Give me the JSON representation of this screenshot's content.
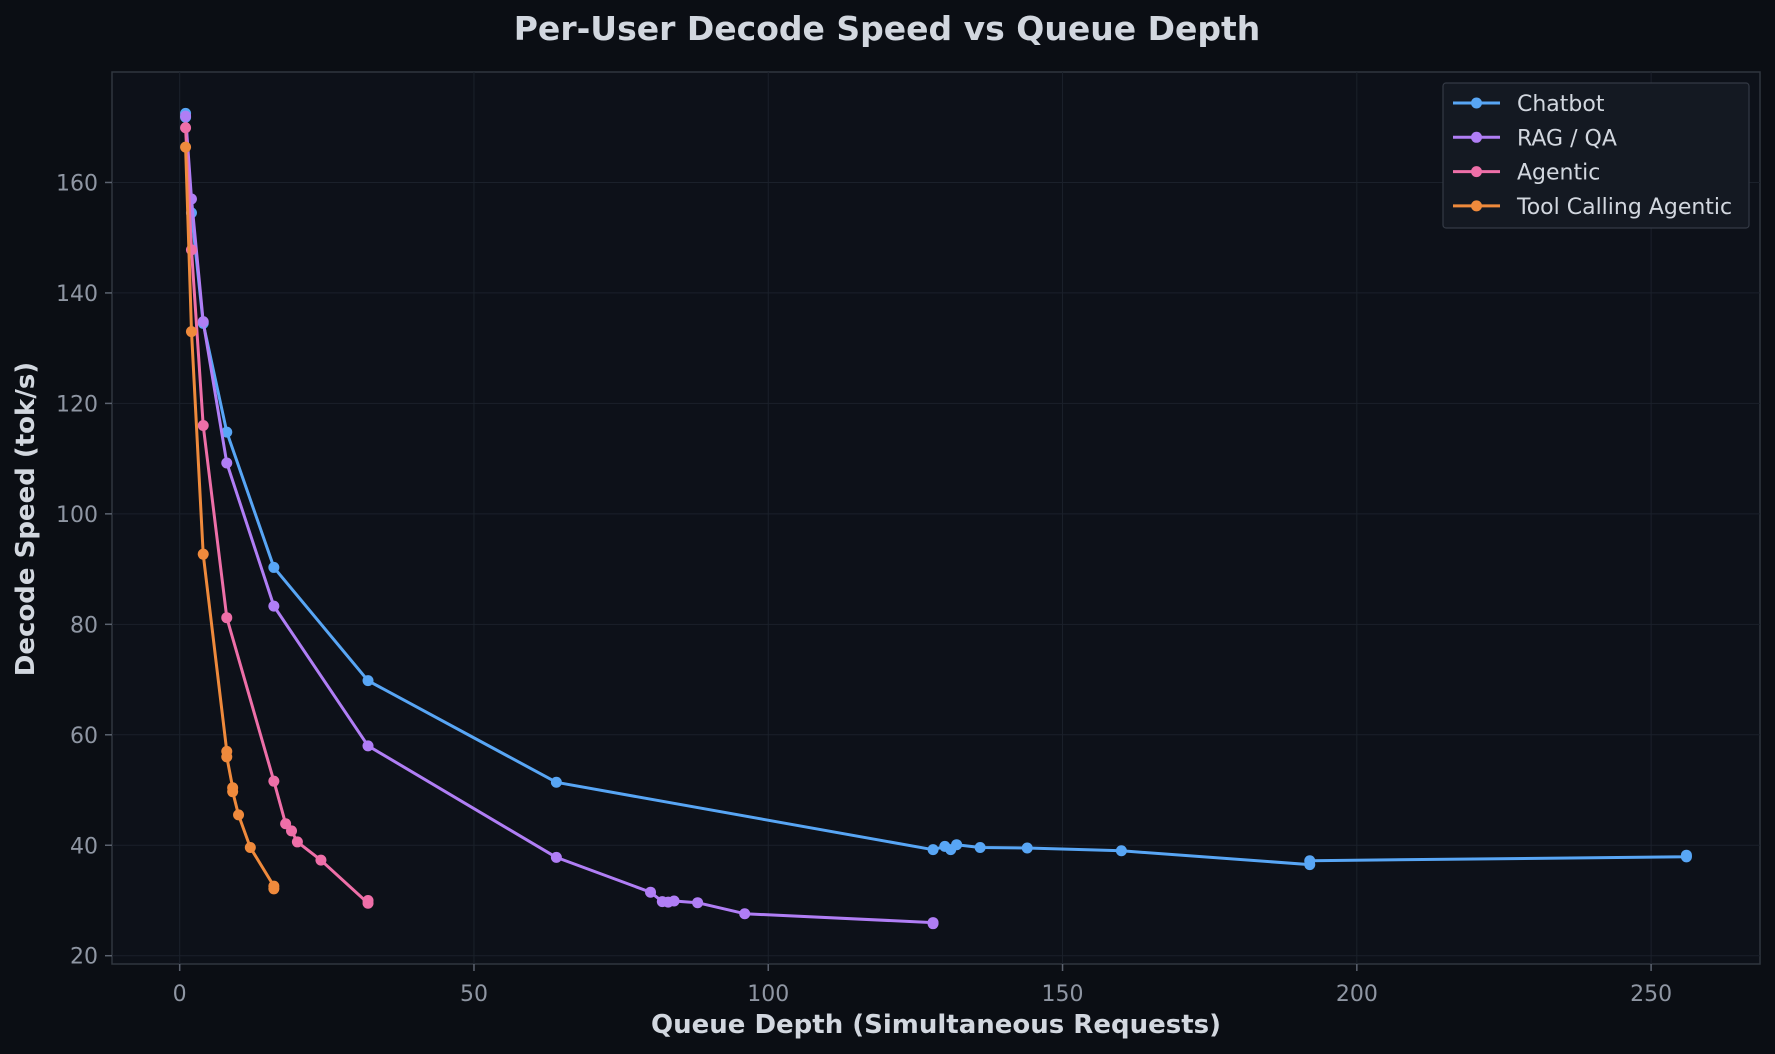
{
  "chart_data": {
    "type": "line",
    "title": "Per-User Decode Speed vs Queue Depth",
    "xlabel": "Queue Depth (Simultaneous Requests)",
    "ylabel": "Decode Speed (tok/s)",
    "xlim": [
      -11.5,
      268.5
    ],
    "ylim": [
      18.5,
      180
    ],
    "xticks": [
      0,
      50,
      100,
      150,
      200,
      250
    ],
    "yticks": [
      20,
      40,
      60,
      80,
      100,
      120,
      140,
      160
    ],
    "grid": true,
    "legend": "top-right",
    "series": [
      {
        "name": "Chatbot",
        "color": "#58a6f5",
        "points": [
          [
            1,
            172.5
          ],
          [
            1,
            171.8
          ],
          [
            2,
            154.5
          ],
          [
            4,
            134.5
          ],
          [
            8,
            114.8
          ],
          [
            16,
            90.3
          ],
          [
            32,
            69.8
          ],
          [
            64,
            51.4
          ],
          [
            128,
            39.2
          ],
          [
            130,
            39.8
          ],
          [
            131,
            39.2
          ],
          [
            132,
            40.1
          ],
          [
            136,
            39.6
          ],
          [
            144,
            39.5
          ],
          [
            160,
            39.0
          ],
          [
            192,
            36.5
          ],
          [
            192,
            37.2
          ],
          [
            256,
            37.9
          ],
          [
            256,
            38.2
          ]
        ]
      },
      {
        "name": "RAG / QA",
        "color": "#b07ef5",
        "points": [
          [
            1,
            172.0
          ],
          [
            2,
            157.0
          ],
          [
            4,
            134.8
          ],
          [
            8,
            109.2
          ],
          [
            16,
            83.3
          ],
          [
            32,
            58.0
          ],
          [
            64,
            37.8
          ],
          [
            80,
            31.5
          ],
          [
            82,
            29.8
          ],
          [
            83,
            29.7
          ],
          [
            84,
            29.9
          ],
          [
            88,
            29.6
          ],
          [
            96,
            27.6
          ],
          [
            128,
            26.0
          ],
          [
            128,
            25.8
          ]
        ]
      },
      {
        "name": "Agentic",
        "color": "#ee6fa8",
        "points": [
          [
            1,
            169.9
          ],
          [
            2,
            147.8
          ],
          [
            4,
            116.0
          ],
          [
            8,
            81.2
          ],
          [
            16,
            51.6
          ],
          [
            18,
            43.9
          ],
          [
            19,
            42.6
          ],
          [
            20,
            40.6
          ],
          [
            24,
            37.3
          ],
          [
            32,
            29.5
          ],
          [
            32,
            30.0
          ]
        ]
      },
      {
        "name": "Tool Calling Agentic",
        "color": "#ef8a3c",
        "points": [
          [
            1,
            166.4
          ],
          [
            2,
            133.0
          ],
          [
            4,
            92.7
          ],
          [
            8,
            57.0
          ],
          [
            8,
            56.0
          ],
          [
            9,
            50.4
          ],
          [
            9,
            49.7
          ],
          [
            10,
            45.5
          ],
          [
            12,
            39.6
          ],
          [
            16,
            32.6
          ],
          [
            16,
            32.1
          ]
        ]
      }
    ]
  }
}
